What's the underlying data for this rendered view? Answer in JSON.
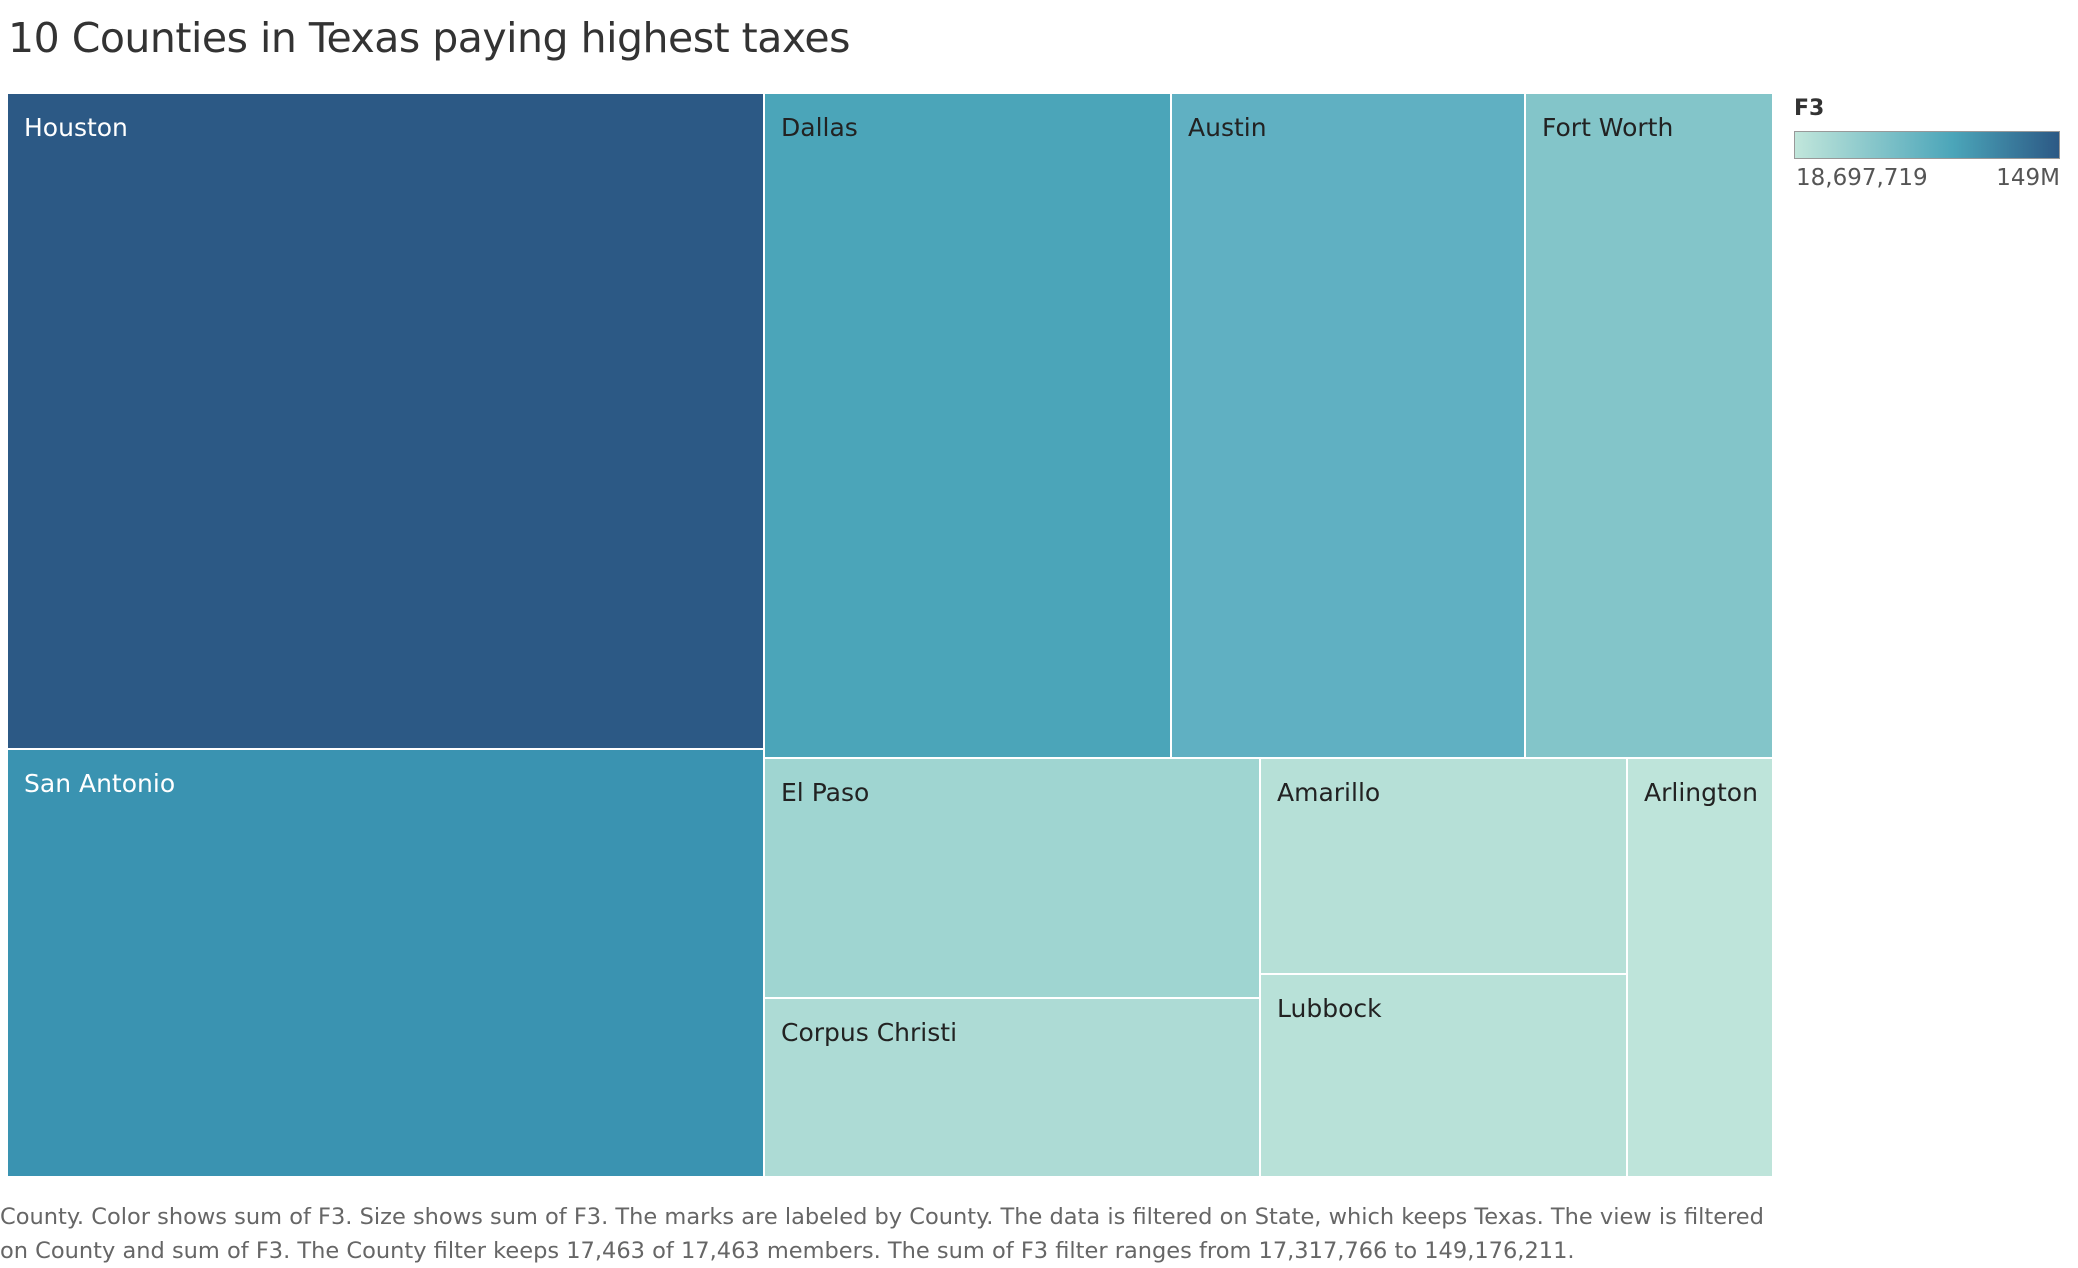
{
  "title": "10 Counties in Texas paying highest taxes",
  "legend": {
    "title": "F3",
    "min_label": "18,697,719",
    "max_label": "149M",
    "color_low": "#c1e6db",
    "color_mid": "#4ba5b9",
    "color_high": "#2c5985"
  },
  "caption": "County.  Color shows sum of F3.  Size shows sum of F3.  The marks are labeled by County. The data is filtered on State, which keeps Texas. The view is filtered on County and sum of F3. The County filter keeps 17,463 of 17,463 members. The sum of F3 filter ranges from 17,317,766 to 149,176,211.",
  "chart_data": {
    "type": "treemap",
    "title": "10 Counties in Texas paying highest taxes",
    "measure": "F3",
    "color_range": [
      18697719,
      149176211
    ],
    "items": [
      {
        "name": "Houston",
        "value": 149176211,
        "color": "#2c5985",
        "text_color": "#ffffff"
      },
      {
        "name": "San Antonio",
        "value": 97000000,
        "color": "#3a93b1",
        "text_color": "#ffffff"
      },
      {
        "name": "Dallas",
        "value": 80000000,
        "color": "#4ba5b9",
        "text_color": "#222222"
      },
      {
        "name": "Austin",
        "value": 70000000,
        "color": "#60b0c2",
        "text_color": "#222222"
      },
      {
        "name": "Fort Worth",
        "value": 49000000,
        "color": "#83c5c9",
        "text_color": "#222222"
      },
      {
        "name": "El Paso",
        "value": 35000000,
        "color": "#9fd5d1",
        "text_color": "#222222"
      },
      {
        "name": "Corpus Christi",
        "value": 25000000,
        "color": "#addbd5",
        "text_color": "#222222"
      },
      {
        "name": "Amarillo",
        "value": 23000000,
        "color": "#b6e0d7",
        "text_color": "#222222"
      },
      {
        "name": "Lubbock",
        "value": 21500000,
        "color": "#b8e1d8",
        "text_color": "#222222"
      },
      {
        "name": "Arlington",
        "value": 18697719,
        "color": "#bee4da",
        "text_color": "#222222"
      }
    ]
  }
}
